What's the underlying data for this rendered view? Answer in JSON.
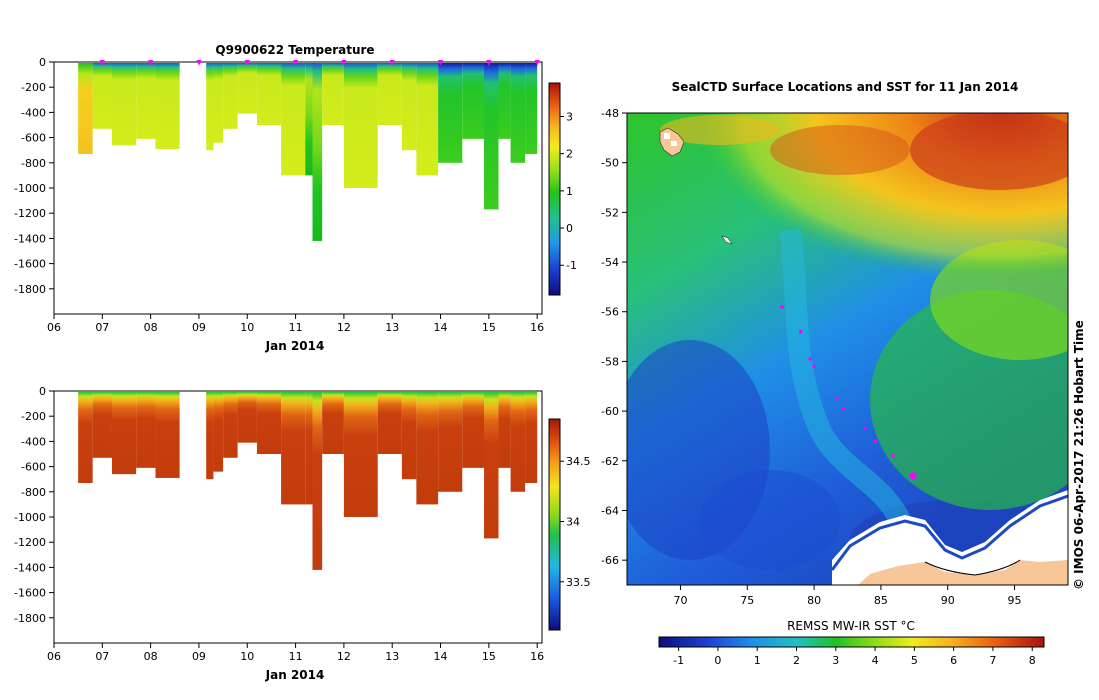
{
  "chart_data": [
    {
      "type": "heatmap",
      "id": "temperature-section",
      "title": "Q9900622  Temperature",
      "xlabel": "Jan 2014",
      "ylabel": "",
      "xlim": [
        6,
        16.1
      ],
      "ylim": [
        -2000,
        0
      ],
      "x_ticks": [
        "06",
        "07",
        "08",
        "09",
        "10",
        "11",
        "12",
        "13",
        "14",
        "15",
        "16"
      ],
      "y_ticks": [
        "0",
        "-200",
        "-400",
        "-600",
        "-800",
        "-1000",
        "-1200",
        "-1400",
        "-1600",
        "-1800"
      ],
      "colorbar": {
        "range": [
          -1.8,
          3.9
        ],
        "ticks": [
          "3",
          "2",
          "1",
          "0",
          "-1"
        ]
      },
      "marker_days": [
        7,
        8,
        9,
        10,
        11,
        12,
        13,
        14,
        15,
        16
      ],
      "profiles": [
        {
          "x0": 6.5,
          "x1": 6.8,
          "depth": 730,
          "kind": "warm"
        },
        {
          "x0": 6.8,
          "x1": 7.2,
          "depth": 530,
          "kind": "mid"
        },
        {
          "x0": 7.2,
          "x1": 7.7,
          "depth": 660,
          "kind": "mid"
        },
        {
          "x0": 7.7,
          "x1": 8.1,
          "depth": 610,
          "kind": "mid"
        },
        {
          "x0": 8.1,
          "x1": 8.6,
          "depth": 690,
          "kind": "mid"
        },
        {
          "x0": 9.15,
          "x1": 9.3,
          "depth": 700,
          "kind": "mid"
        },
        {
          "x0": 9.3,
          "x1": 9.5,
          "depth": 640,
          "kind": "mid"
        },
        {
          "x0": 9.5,
          "x1": 9.8,
          "depth": 530,
          "kind": "mid"
        },
        {
          "x0": 9.8,
          "x1": 10.2,
          "depth": 410,
          "kind": "mid"
        },
        {
          "x0": 10.2,
          "x1": 10.7,
          "depth": 500,
          "kind": "mid"
        },
        {
          "x0": 10.7,
          "x1": 11.2,
          "depth": 900,
          "kind": "mid"
        },
        {
          "x0": 11.2,
          "x1": 11.35,
          "depth": 900,
          "kind": "green"
        },
        {
          "x0": 11.35,
          "x1": 11.55,
          "depth": 1420,
          "kind": "green"
        },
        {
          "x0": 11.55,
          "x1": 12.0,
          "depth": 500,
          "kind": "mid"
        },
        {
          "x0": 12.0,
          "x1": 12.7,
          "depth": 1000,
          "kind": "mid"
        },
        {
          "x0": 12.7,
          "x1": 13.2,
          "depth": 500,
          "kind": "mid"
        },
        {
          "x0": 13.2,
          "x1": 13.5,
          "depth": 700,
          "kind": "mid"
        },
        {
          "x0": 13.5,
          "x1": 13.95,
          "depth": 900,
          "kind": "mid"
        },
        {
          "x0": 13.95,
          "x1": 14.45,
          "depth": 800,
          "kind": "cold"
        },
        {
          "x0": 14.45,
          "x1": 14.9,
          "depth": 610,
          "kind": "cold"
        },
        {
          "x0": 14.9,
          "x1": 15.2,
          "depth": 1170,
          "kind": "cold"
        },
        {
          "x0": 15.2,
          "x1": 15.45,
          "depth": 610,
          "kind": "cold"
        },
        {
          "x0": 15.45,
          "x1": 15.75,
          "depth": 800,
          "kind": "cold"
        },
        {
          "x0": 15.75,
          "x1": 16.0,
          "depth": 730,
          "kind": "cold"
        }
      ]
    },
    {
      "type": "heatmap",
      "id": "salinity-section",
      "title": "",
      "xlabel": "Jan 2014",
      "xlim": [
        6,
        16.1
      ],
      "ylim": [
        -2000,
        0
      ],
      "x_ticks": [
        "06",
        "07",
        "08",
        "09",
        "10",
        "11",
        "12",
        "13",
        "14",
        "15",
        "16"
      ],
      "y_ticks": [
        "0",
        "-200",
        "-400",
        "-600",
        "-800",
        "-1000",
        "-1200",
        "-1400",
        "-1600",
        "-1800"
      ],
      "colorbar": {
        "range": [
          33.1,
          34.85
        ],
        "ticks": [
          "34.5",
          "34",
          "33.5"
        ]
      }
    },
    {
      "type": "heatmap",
      "id": "sst-map",
      "title": "SealCTD Surface Locations and SST for 11 Jan 2014",
      "xlabel": "",
      "xlim": [
        66,
        99
      ],
      "ylim": [
        -67,
        -48
      ],
      "x_ticks": [
        "70",
        "75",
        "80",
        "85",
        "90",
        "95"
      ],
      "y_ticks": [
        "-48",
        "-50",
        "-52",
        "-54",
        "-56",
        "-58",
        "-60",
        "-62",
        "-64",
        "-66"
      ],
      "colorbar": {
        "label": "REMSS MW-IR SST °C",
        "range": [
          -1.5,
          8.3
        ],
        "ticks": [
          "-1",
          "0",
          "1",
          "2",
          "3",
          "4",
          "5",
          "6",
          "7",
          "8"
        ]
      },
      "track": [
        {
          "lon": 77.6,
          "lat": -55.8
        },
        {
          "lon": 79.0,
          "lat": -56.8
        },
        {
          "lon": 79.7,
          "lat": -57.9
        },
        {
          "lon": 80.0,
          "lat": -58.2
        },
        {
          "lon": 81.7,
          "lat": -59.5
        },
        {
          "lon": 82.2,
          "lat": -59.9
        },
        {
          "lon": 83.8,
          "lat": -60.7
        },
        {
          "lon": 84.6,
          "lat": -61.2
        },
        {
          "lon": 85.9,
          "lat": -61.8
        }
      ],
      "current_position": {
        "lon": 87.4,
        "lat": -62.6
      }
    }
  ],
  "credit": "© IMOS 06-Apr-2017 21:26 Hobart Time",
  "colors": {
    "marker": "#ff00ff",
    "land": "#f7c79a",
    "ice": "#ffffff"
  }
}
